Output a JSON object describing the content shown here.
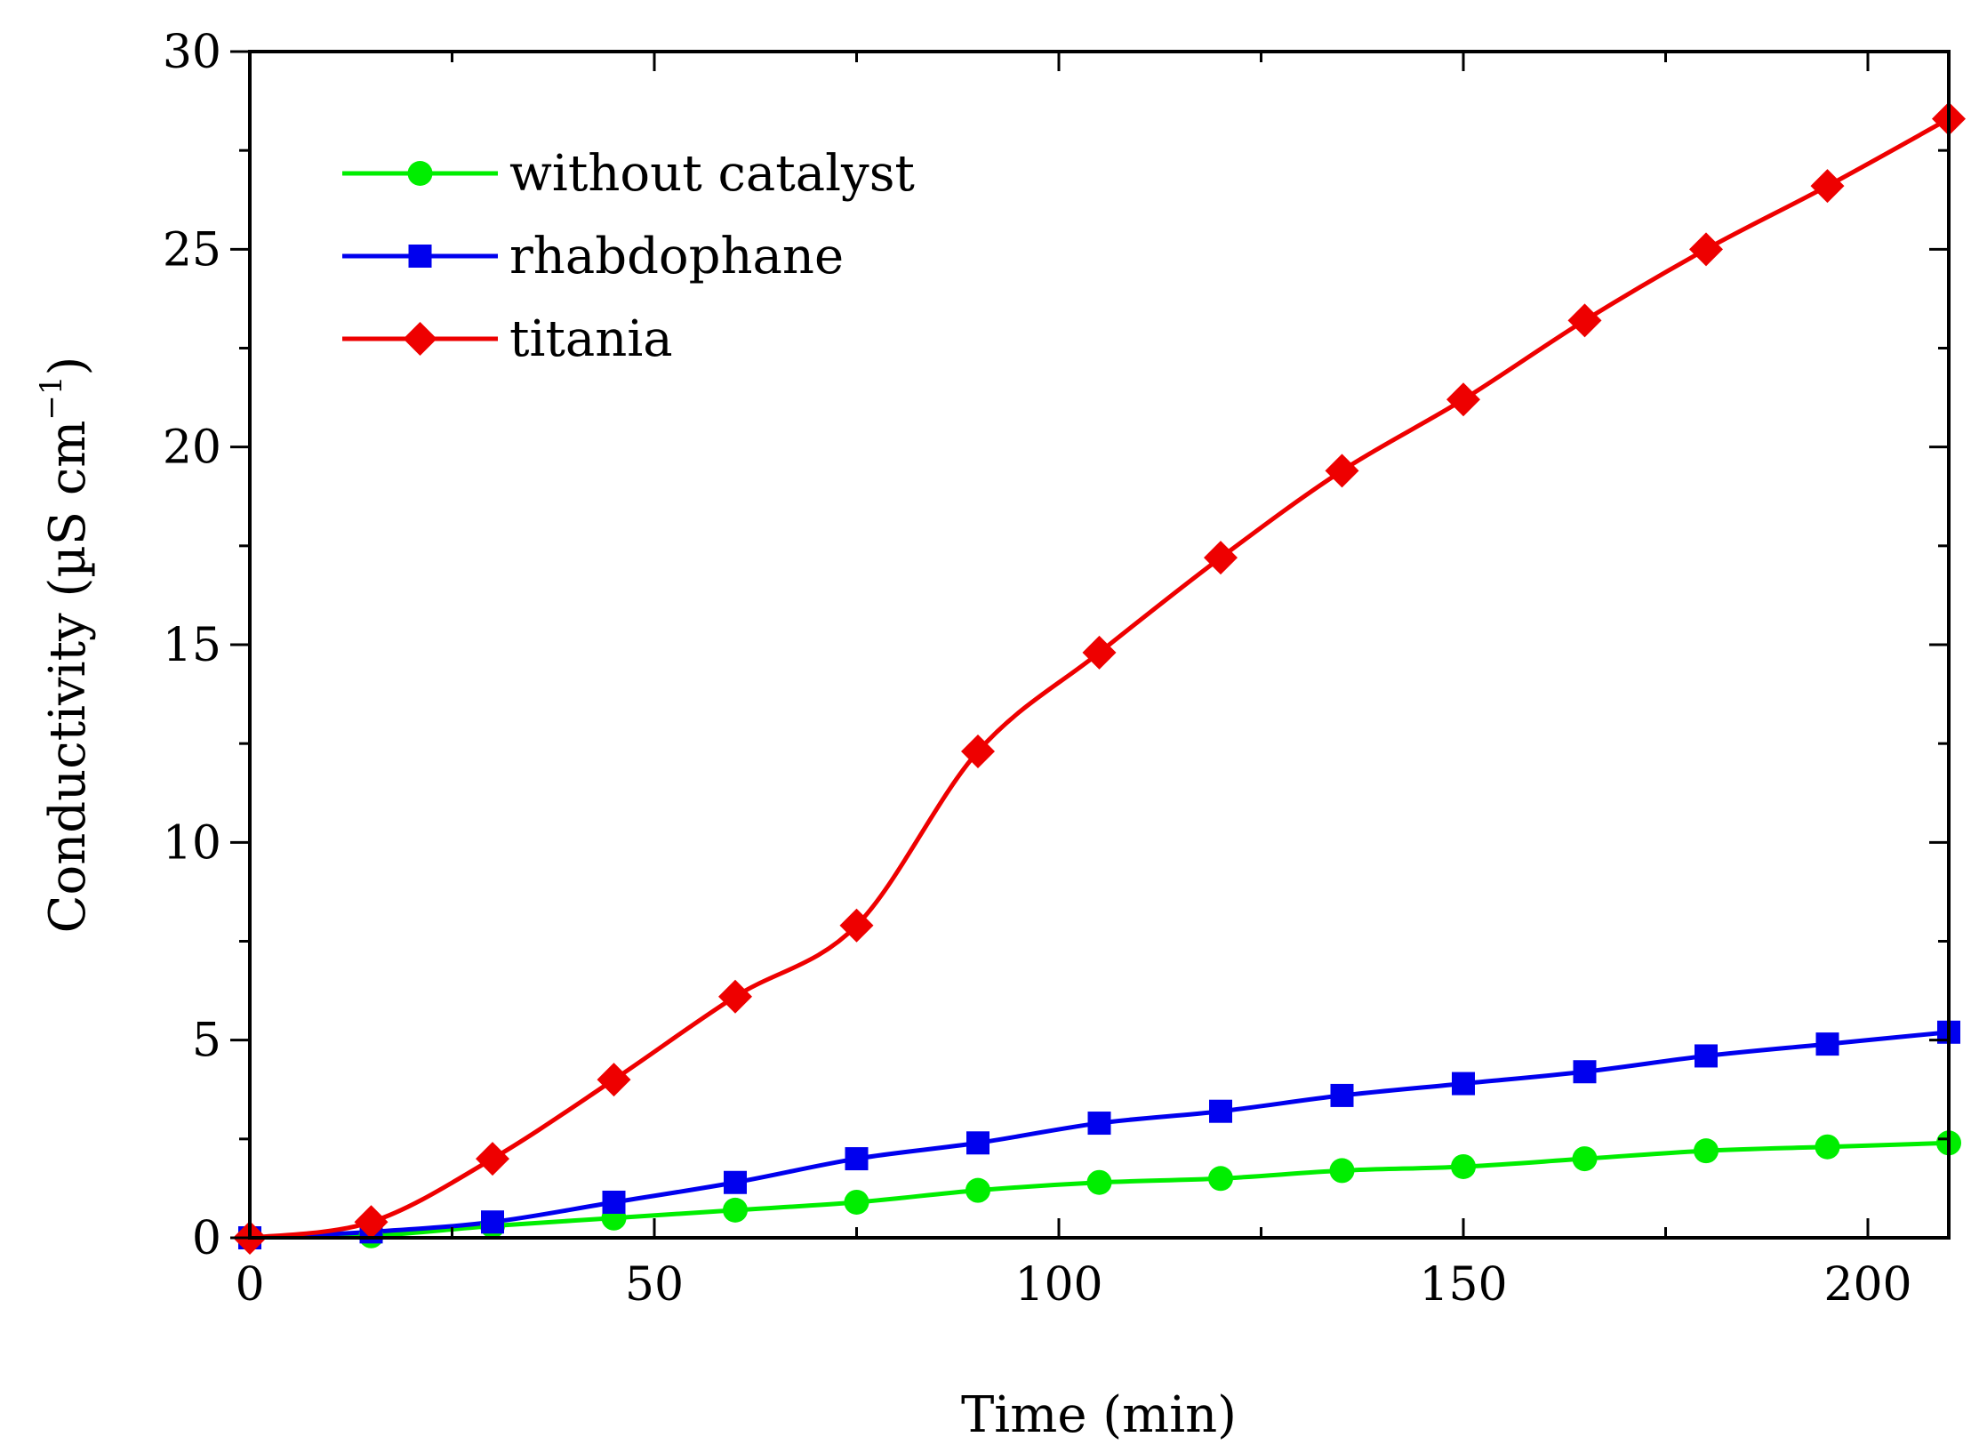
{
  "chart_data": {
    "type": "line",
    "title": "",
    "xlabel": "Time (min)",
    "ylabel": "Conductivity (µS cm⁻¹)",
    "ylabel_parts": {
      "main": "Conductivity (µS cm",
      "sup": "−1",
      "close": ")"
    },
    "xlim": [
      0,
      210
    ],
    "ylim": [
      0,
      30
    ],
    "xticks": [
      0,
      50,
      100,
      150,
      200
    ],
    "yticks": [
      0,
      5,
      10,
      15,
      20,
      25,
      30
    ],
    "x_minor_step": 25,
    "y_minor_step": 2.5,
    "grid": false,
    "legend_position": "top-left",
    "series": [
      {
        "name": "without catalyst",
        "color": "#00ee00",
        "marker": "circle",
        "x": [
          0,
          15,
          30,
          45,
          60,
          75,
          90,
          105,
          120,
          135,
          150,
          165,
          180,
          195,
          210
        ],
        "values": [
          0,
          0.05,
          0.3,
          0.5,
          0.7,
          0.9,
          1.2,
          1.4,
          1.5,
          1.7,
          1.8,
          2.0,
          2.2,
          2.3,
          2.4
        ]
      },
      {
        "name": "rhabdophane",
        "color": "#0000ee",
        "marker": "square",
        "x": [
          0,
          15,
          30,
          45,
          60,
          75,
          90,
          105,
          120,
          135,
          150,
          165,
          180,
          195,
          210
        ],
        "values": [
          0,
          0.15,
          0.4,
          0.9,
          1.4,
          2.0,
          2.4,
          2.9,
          3.2,
          3.6,
          3.9,
          4.2,
          4.6,
          4.9,
          5.2
        ]
      },
      {
        "name": "titania",
        "color": "#ee0000",
        "marker": "diamond",
        "x": [
          0,
          15,
          30,
          45,
          60,
          75,
          90,
          105,
          120,
          135,
          150,
          165,
          180,
          195,
          210
        ],
        "values": [
          0,
          0.4,
          2.0,
          4.0,
          6.1,
          7.9,
          12.3,
          14.8,
          17.2,
          19.4,
          21.2,
          23.2,
          25.0,
          26.6,
          28.3
        ]
      }
    ]
  }
}
